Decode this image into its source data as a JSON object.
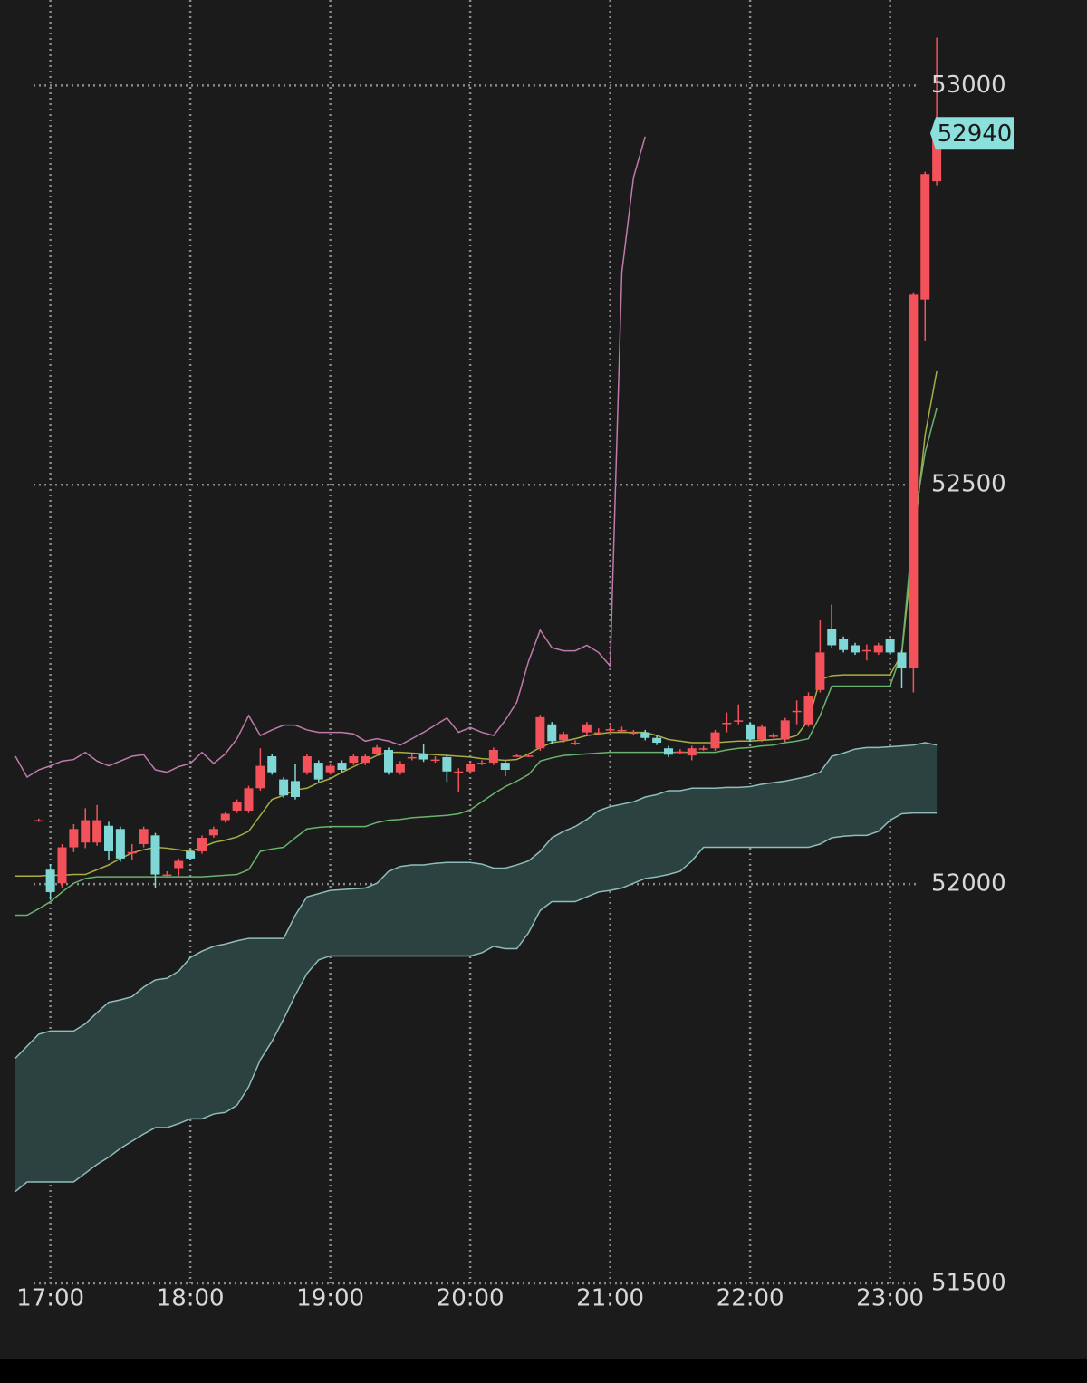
{
  "chart_data": {
    "type": "candlestick",
    "x": [
      "16:45",
      "16:50",
      "16:55",
      "17:00",
      "17:05",
      "17:10",
      "17:15",
      "17:20",
      "17:25",
      "17:30",
      "17:35",
      "17:40",
      "17:45",
      "17:50",
      "17:55",
      "18:00",
      "18:05",
      "18:10",
      "18:15",
      "18:20",
      "18:25",
      "18:30",
      "18:35",
      "18:40",
      "18:45",
      "18:50",
      "18:55",
      "19:00",
      "19:05",
      "19:10",
      "19:15",
      "19:20",
      "19:25",
      "19:30",
      "19:35",
      "19:40",
      "19:45",
      "19:50",
      "19:55",
      "20:00",
      "20:05",
      "20:10",
      "20:15",
      "20:20",
      "20:25",
      "20:30",
      "20:35",
      "20:40",
      "20:45",
      "20:50",
      "20:55",
      "21:00",
      "21:05",
      "21:10",
      "21:15",
      "21:20",
      "21:25",
      "21:30",
      "21:35",
      "21:40",
      "21:45",
      "21:50",
      "21:55",
      "22:00",
      "22:05",
      "22:10",
      "22:15",
      "22:20",
      "22:25",
      "22:30",
      "22:35",
      "22:40",
      "22:45",
      "22:50",
      "22:55",
      "23:00",
      "23:05",
      "23:10",
      "23:15",
      "23:20"
    ],
    "open": [
      null,
      null,
      52080,
      52018,
      52001,
      52046,
      52052,
      52052,
      52073,
      52069,
      52040,
      52050,
      52061,
      52012,
      52020,
      52041,
      52041,
      52061,
      52080,
      52092,
      52092,
      52120,
      52160,
      52131,
      52129,
      52140,
      52152,
      52140,
      52152,
      52152,
      52152,
      52163,
      52168,
      52140,
      52159,
      52163,
      52156,
      52159,
      52141,
      52141,
      52152,
      52152,
      52152,
      52161,
      52161,
      52170,
      52200,
      52180,
      52177,
      52190,
      52190,
      52194,
      52193,
      52190,
      52190,
      52183,
      52170,
      52166,
      52161,
      52170,
      52170,
      52202,
      52205,
      52200,
      52181,
      52186,
      52181,
      52217,
      52200,
      52243,
      52319,
      52307,
      52299,
      52293,
      52290,
      52307,
      52290,
      52270,
      52732,
      52880
    ],
    "high": [
      null,
      null,
      52082,
      52025,
      52050,
      52075,
      52095,
      52099,
      52078,
      52072,
      52050,
      52072,
      52064,
      52016,
      52032,
      52044,
      52061,
      52072,
      52091,
      52106,
      52123,
      52170,
      52163,
      52134,
      52150,
      52163,
      52155,
      52151,
      52155,
      52163,
      52163,
      52174,
      52171,
      52154,
      52163,
      52175,
      52160,
      52162,
      52145,
      52153,
      52155,
      52171,
      52155,
      52163,
      52163,
      52212,
      52203,
      52191,
      52180,
      52203,
      52195,
      52198,
      52197,
      52193,
      52193,
      52186,
      52173,
      52169,
      52173,
      52173,
      52193,
      52215,
      52225,
      52203,
      52200,
      52189,
      52208,
      52230,
      52240,
      52330,
      52350,
      52310,
      52302,
      52300,
      52302,
      52310,
      52293,
      52741,
      52892,
      53060
    ],
    "low": [
      null,
      null,
      52078,
      51980,
      51995,
      52040,
      52045,
      52048,
      52030,
      52028,
      52030,
      52046,
      51995,
      52008,
      52010,
      52030,
      52038,
      52058,
      52077,
      52089,
      52089,
      52117,
      52137,
      52108,
      52106,
      52137,
      52128,
      52137,
      52140,
      52149,
      52149,
      52160,
      52137,
      52137,
      52155,
      52153,
      52152,
      52128,
      52115,
      52138,
      52149,
      52149,
      52135,
      52159,
      52159,
      52167,
      52176,
      52177,
      52174,
      52187,
      52187,
      52190,
      52190,
      52187,
      52180,
      52174,
      52159,
      52163,
      52155,
      52167,
      52167,
      52190,
      52200,
      52178,
      52178,
      52183,
      52178,
      52200,
      52197,
      52240,
      52296,
      52290,
      52287,
      52280,
      52287,
      52287,
      52245,
      52240,
      52680,
      52875
    ],
    "close": [
      null,
      null,
      52080,
      51990,
      52046,
      52069,
      52080,
      52080,
      52041,
      52032,
      52040,
      52069,
      52012,
      52012,
      52029,
      52032,
      52058,
      52069,
      52088,
      52103,
      52120,
      52148,
      52140,
      52111,
      52109,
      52160,
      52131,
      52148,
      52143,
      52160,
      52160,
      52171,
      52140,
      52151,
      52159,
      52156,
      52156,
      52141,
      52141,
      52150,
      52152,
      52168,
      52143,
      52161,
      52161,
      52209,
      52179,
      52188,
      52177,
      52200,
      52190,
      52194,
      52193,
      52190,
      52183,
      52177,
      52162,
      52166,
      52170,
      52170,
      52190,
      52202,
      52205,
      52181,
      52197,
      52186,
      52205,
      52217,
      52236,
      52290,
      52299,
      52293,
      52290,
      52293,
      52299,
      52290,
      52270,
      52738,
      52889,
      52940
    ],
    "up_color": "#f4525a",
    "down_color": "#7fd8d6",
    "series": [
      {
        "color": "#a9ad45",
        "values": [
          52010,
          52010,
          52010,
          52011,
          52011,
          52012,
          52012,
          52018,
          52024,
          52032,
          52039,
          52043,
          52046,
          52045,
          52043,
          52041,
          52046,
          52052,
          52055,
          52059,
          52066,
          52086,
          52106,
          52111,
          52118,
          52120,
          52127,
          52132,
          52140,
          52147,
          52154,
          52161,
          52165,
          52165,
          52164,
          52163,
          52162,
          52161,
          52160,
          52159,
          52157,
          52156,
          52155,
          52156,
          52163,
          52171,
          52177,
          52179,
          52182,
          52186,
          52188,
          52190,
          52190,
          52190,
          52190,
          52186,
          52181,
          52179,
          52177,
          52177,
          52177,
          52178,
          52179,
          52179,
          52180,
          52181,
          52182,
          52186,
          52205,
          52256,
          52261,
          52262,
          52262,
          52262,
          52262,
          52262,
          52288,
          52426,
          52562,
          52642
        ]
      },
      {
        "color": "#69b46c",
        "values": [
          51961,
          51961,
          51969,
          51978,
          51990,
          52001,
          52007,
          52009,
          52009,
          52009,
          52009,
          52009,
          52009,
          52009,
          52009,
          52009,
          52009,
          52010,
          52011,
          52012,
          52018,
          52041,
          52044,
          52046,
          52058,
          52069,
          52071,
          52072,
          52072,
          52072,
          52072,
          52077,
          52080,
          52081,
          52083,
          52084,
          52085,
          52086,
          52088,
          52093,
          52103,
          52113,
          52122,
          52129,
          52137,
          52154,
          52158,
          52161,
          52162,
          52163,
          52164,
          52165,
          52165,
          52165,
          52165,
          52165,
          52165,
          52165,
          52165,
          52165,
          52165,
          52168,
          52170,
          52171,
          52173,
          52174,
          52177,
          52179,
          52182,
          52211,
          52248,
          52248,
          52248,
          52248,
          52248,
          52248,
          52290,
          52449,
          52540,
          52596
        ]
      },
      {
        "color": "#c07aac",
        "values": [
          52160,
          52134,
          52143,
          52148,
          52154,
          52156,
          52165,
          52154,
          52148,
          52154,
          52160,
          52162,
          52143,
          52140,
          52147,
          52151,
          52165,
          52151,
          52163,
          52182,
          52211,
          52186,
          52193,
          52199,
          52199,
          52193,
          52190,
          52190,
          52190,
          52188,
          52179,
          52182,
          52179,
          52174,
          52182,
          52190,
          52199,
          52208,
          52190,
          52196,
          52190,
          52186,
          52205,
          52228,
          52279,
          52318,
          52296,
          52292,
          52292,
          52299,
          52290,
          52273,
          52766,
          52885,
          52936,
          null,
          null,
          null,
          null,
          null,
          null,
          null,
          null,
          null,
          null,
          null,
          null,
          null,
          null,
          null,
          null,
          null,
          null,
          null,
          null,
          null,
          null,
          null,
          null,
          null
        ]
      },
      {
        "color": "#8fbdbb",
        "fill": "#2c4240",
        "values": [
          51782,
          51797,
          51812,
          51816,
          51816,
          51816,
          51825,
          51839,
          51852,
          51855,
          51859,
          51871,
          51880,
          51882,
          51891,
          51908,
          51916,
          51922,
          51925,
          51929,
          51932,
          51932,
          51932,
          51932,
          51961,
          51984,
          51988,
          51992,
          51993,
          51994,
          51995,
          52001,
          52016,
          52022,
          52024,
          52024,
          52026,
          52027,
          52027,
          52027,
          52025,
          52020,
          52020,
          52024,
          52029,
          52041,
          52058,
          52066,
          52072,
          52081,
          52092,
          52097,
          52100,
          52103,
          52109,
          52112,
          52117,
          52117,
          52120,
          52120,
          52120,
          52121,
          52121,
          52122,
          52125,
          52127,
          52129,
          52132,
          52135,
          52140,
          52160,
          52164,
          52169,
          52171,
          52171,
          52172,
          52173,
          52174,
          52177,
          52174
        ]
      },
      {
        "color": "#8fbdbb",
        "values": [
          51615,
          51627,
          51627,
          51627,
          51627,
          51627,
          51638,
          51649,
          51658,
          51669,
          51678,
          51687,
          51695,
          51695,
          51700,
          51706,
          51706,
          51712,
          51714,
          51723,
          51746,
          51780,
          51803,
          51831,
          51861,
          51888,
          51905,
          51910,
          51910,
          51910,
          51910,
          51910,
          51910,
          51910,
          51910,
          51910,
          51910,
          51910,
          51910,
          51910,
          51914,
          51922,
          51919,
          51919,
          51939,
          51967,
          51978,
          51978,
          51978,
          51984,
          51990,
          51992,
          51995,
          52001,
          52007,
          52009,
          52012,
          52016,
          52029,
          52046,
          52046,
          52046,
          52046,
          52046,
          52046,
          52046,
          52046,
          52046,
          52046,
          52050,
          52058,
          52060,
          52061,
          52061,
          52066,
          52080,
          52088,
          52089,
          52089,
          52089
        ]
      }
    ],
    "last_price_color": "#8ce0dc",
    "ylim": [
      51500,
      53107
    ],
    "yticks": [
      51500,
      52000,
      52500,
      53000
    ],
    "xticks": [
      "17:00",
      "18:00",
      "19:00",
      "20:00",
      "21:00",
      "22:00",
      "23:00"
    ],
    "grid": true
  }
}
